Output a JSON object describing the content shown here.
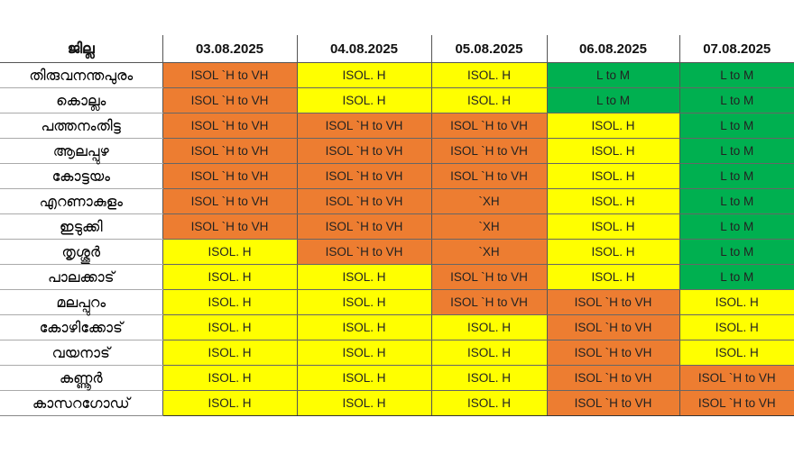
{
  "colors": {
    "XH": "#ed7d31",
    "H to VH": "#ed7d31",
    "H": "#ffff00",
    "L to M": "#00b050"
  },
  "table": {
    "header": {
      "district": "ജില്ല",
      "dates": [
        "03.08.2025",
        "04.08.2025",
        "05.08.2025",
        "06.08.2025",
        "07.08.2025"
      ]
    },
    "rows": [
      {
        "district": "തിരുവനന്തപുരം",
        "cells": [
          {
            "text": "ISOL `H to VH",
            "level": "H to VH"
          },
          {
            "text": "ISOL. H",
            "level": "H"
          },
          {
            "text": "ISOL. H",
            "level": "H"
          },
          {
            "text": "L to M",
            "level": "L to M"
          },
          {
            "text": "L to M",
            "level": "L to M"
          }
        ]
      },
      {
        "district": "കൊല്ലം",
        "cells": [
          {
            "text": "ISOL `H to VH",
            "level": "H to VH"
          },
          {
            "text": "ISOL. H",
            "level": "H"
          },
          {
            "text": "ISOL. H",
            "level": "H"
          },
          {
            "text": "L to M",
            "level": "L to M"
          },
          {
            "text": "L to M",
            "level": "L to M"
          }
        ]
      },
      {
        "district": "പത്തനംതിട്ട",
        "cells": [
          {
            "text": "ISOL `H to VH",
            "level": "H to VH"
          },
          {
            "text": "ISOL `H to VH",
            "level": "H to VH"
          },
          {
            "text": "ISOL `H to VH",
            "level": "H to VH"
          },
          {
            "text": "ISOL. H",
            "level": "H"
          },
          {
            "text": "L to M",
            "level": "L to M"
          }
        ]
      },
      {
        "district": "ആലപ്പുഴ",
        "cells": [
          {
            "text": "ISOL `H to VH",
            "level": "H to VH"
          },
          {
            "text": "ISOL `H to VH",
            "level": "H to VH"
          },
          {
            "text": "ISOL `H to VH",
            "level": "H to VH"
          },
          {
            "text": "ISOL. H",
            "level": "H"
          },
          {
            "text": "L to M",
            "level": "L to M"
          }
        ]
      },
      {
        "district": "കോട്ടയം",
        "cells": [
          {
            "text": "ISOL `H to VH",
            "level": "H to VH"
          },
          {
            "text": "ISOL `H to VH",
            "level": "H to VH"
          },
          {
            "text": "ISOL `H to VH",
            "level": "H to VH"
          },
          {
            "text": "ISOL. H",
            "level": "H"
          },
          {
            "text": "L to M",
            "level": "L to M"
          }
        ]
      },
      {
        "district": "എറണാകുളം",
        "cells": [
          {
            "text": "ISOL `H to VH",
            "level": "H to VH"
          },
          {
            "text": "ISOL `H to VH",
            "level": "H to VH"
          },
          {
            "text": "`XH",
            "level": "XH"
          },
          {
            "text": "ISOL. H",
            "level": "H"
          },
          {
            "text": "L to M",
            "level": "L to M"
          }
        ]
      },
      {
        "district": "ഇടുക്കി",
        "cells": [
          {
            "text": "ISOL `H to VH",
            "level": "H to VH"
          },
          {
            "text": "ISOL `H to VH",
            "level": "H to VH"
          },
          {
            "text": "`XH",
            "level": "XH"
          },
          {
            "text": "ISOL. H",
            "level": "H"
          },
          {
            "text": "L to M",
            "level": "L to M"
          }
        ]
      },
      {
        "district": "തൃശ്ശൂർ",
        "cells": [
          {
            "text": "ISOL. H",
            "level": "H"
          },
          {
            "text": "ISOL `H to VH",
            "level": "H to VH"
          },
          {
            "text": "`XH",
            "level": "XH"
          },
          {
            "text": "ISOL. H",
            "level": "H"
          },
          {
            "text": "L to M",
            "level": "L to M"
          }
        ]
      },
      {
        "district": "പാലക്കാട്",
        "cells": [
          {
            "text": "ISOL. H",
            "level": "H"
          },
          {
            "text": "ISOL. H",
            "level": "H"
          },
          {
            "text": "ISOL `H to VH",
            "level": "H to VH"
          },
          {
            "text": "ISOL. H",
            "level": "H"
          },
          {
            "text": "L to M",
            "level": "L to M"
          }
        ]
      },
      {
        "district": "മലപ്പുറം",
        "cells": [
          {
            "text": "ISOL. H",
            "level": "H"
          },
          {
            "text": "ISOL. H",
            "level": "H"
          },
          {
            "text": "ISOL `H to VH",
            "level": "H to VH"
          },
          {
            "text": "ISOL `H to VH",
            "level": "H to VH"
          },
          {
            "text": "ISOL. H",
            "level": "H"
          }
        ]
      },
      {
        "district": "കോഴിക്കോട്",
        "cells": [
          {
            "text": "ISOL. H",
            "level": "H"
          },
          {
            "text": "ISOL. H",
            "level": "H"
          },
          {
            "text": "ISOL. H",
            "level": "H"
          },
          {
            "text": "ISOL `H to VH",
            "level": "H to VH"
          },
          {
            "text": "ISOL. H",
            "level": "H"
          }
        ]
      },
      {
        "district": "വയനാട്",
        "cells": [
          {
            "text": "ISOL. H",
            "level": "H"
          },
          {
            "text": "ISOL. H",
            "level": "H"
          },
          {
            "text": "ISOL. H",
            "level": "H"
          },
          {
            "text": "ISOL `H to VH",
            "level": "H to VH"
          },
          {
            "text": "ISOL. H",
            "level": "H"
          }
        ]
      },
      {
        "district": "കണ്ണൂർ",
        "cells": [
          {
            "text": "ISOL. H",
            "level": "H"
          },
          {
            "text": "ISOL. H",
            "level": "H"
          },
          {
            "text": "ISOL. H",
            "level": "H"
          },
          {
            "text": "ISOL `H to VH",
            "level": "H to VH"
          },
          {
            "text": "ISOL `H to VH",
            "level": "H to VH"
          }
        ]
      },
      {
        "district": "കാസറഗോഡ്",
        "cells": [
          {
            "text": "ISOL. H",
            "level": "H"
          },
          {
            "text": "ISOL. H",
            "level": "H"
          },
          {
            "text": "ISOL. H",
            "level": "H"
          },
          {
            "text": "ISOL `H to VH",
            "level": "H to VH"
          },
          {
            "text": "ISOL `H to VH",
            "level": "H to VH"
          }
        ]
      }
    ]
  }
}
